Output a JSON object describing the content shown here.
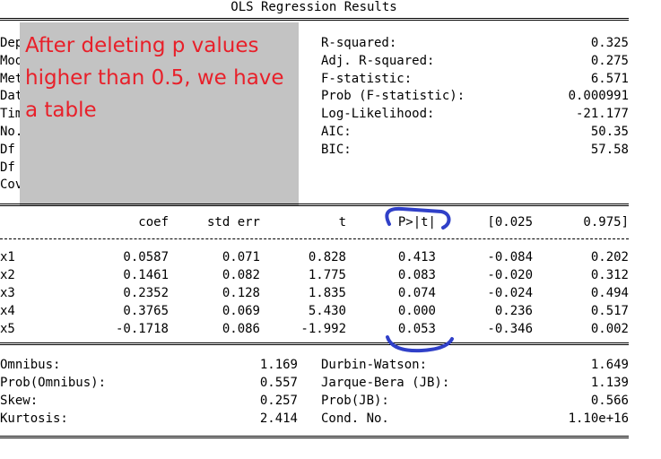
{
  "title": "OLS Regression Results",
  "top_left_fragments": [
    "Dep",
    "Mod",
    "Met",
    "Dat",
    "Tim",
    "No.",
    "Df",
    "Df",
    "Cov"
  ],
  "top_right": [
    {
      "label": "R-squared:",
      "value": "0.325"
    },
    {
      "label": "Adj. R-squared:",
      "value": "0.275"
    },
    {
      "label": "F-statistic:",
      "value": "6.571"
    },
    {
      "label": "Prob (F-statistic):",
      "value": "0.000991"
    },
    {
      "label": "Log-Likelihood:",
      "value": "-21.177"
    },
    {
      "label": "AIC:",
      "value": "50.35"
    },
    {
      "label": "BIC:",
      "value": "57.58"
    }
  ],
  "overlay_note": "After deleting p values higher than 0.5, we have a table",
  "coef_headers": [
    "coef",
    "std err",
    "t",
    "P>|t|",
    "[0.025",
    "0.975]"
  ],
  "coef_rows": [
    {
      "name": "x1",
      "coef": "0.0587",
      "std_err": "0.071",
      "t": "0.828",
      "p": "0.413",
      "lo": "-0.084",
      "hi": "0.202"
    },
    {
      "name": "x2",
      "coef": "0.1461",
      "std_err": "0.082",
      "t": "1.775",
      "p": "0.083",
      "lo": "-0.020",
      "hi": "0.312"
    },
    {
      "name": "x3",
      "coef": "0.2352",
      "std_err": "0.128",
      "t": "1.835",
      "p": "0.074",
      "lo": "-0.024",
      "hi": "0.494"
    },
    {
      "name": "x4",
      "coef": "0.3765",
      "std_err": "0.069",
      "t": "5.430",
      "p": "0.000",
      "lo": "0.236",
      "hi": "0.517"
    },
    {
      "name": "x5",
      "coef": "-0.1718",
      "std_err": "0.086",
      "t": "-1.992",
      "p": "0.053",
      "lo": "-0.346",
      "hi": "0.002"
    }
  ],
  "diagnostics_left": [
    {
      "label": "Omnibus:",
      "value": "1.169"
    },
    {
      "label": "Prob(Omnibus):",
      "value": "0.557"
    },
    {
      "label": "Skew:",
      "value": "0.257"
    },
    {
      "label": "Kurtosis:",
      "value": "2.414"
    }
  ],
  "diagnostics_right": [
    {
      "label": "Durbin-Watson:",
      "value": "1.649"
    },
    {
      "label": "Jarque-Bera (JB):",
      "value": "1.139"
    },
    {
      "label": "Prob(JB):",
      "value": "0.566"
    },
    {
      "label": "Cond. No.",
      "value": "1.10e+16"
    }
  ],
  "colors": {
    "overlay_bg": "#c3c3c3",
    "overlay_text": "#e8202a",
    "annotation_stroke": "#3040c8"
  }
}
